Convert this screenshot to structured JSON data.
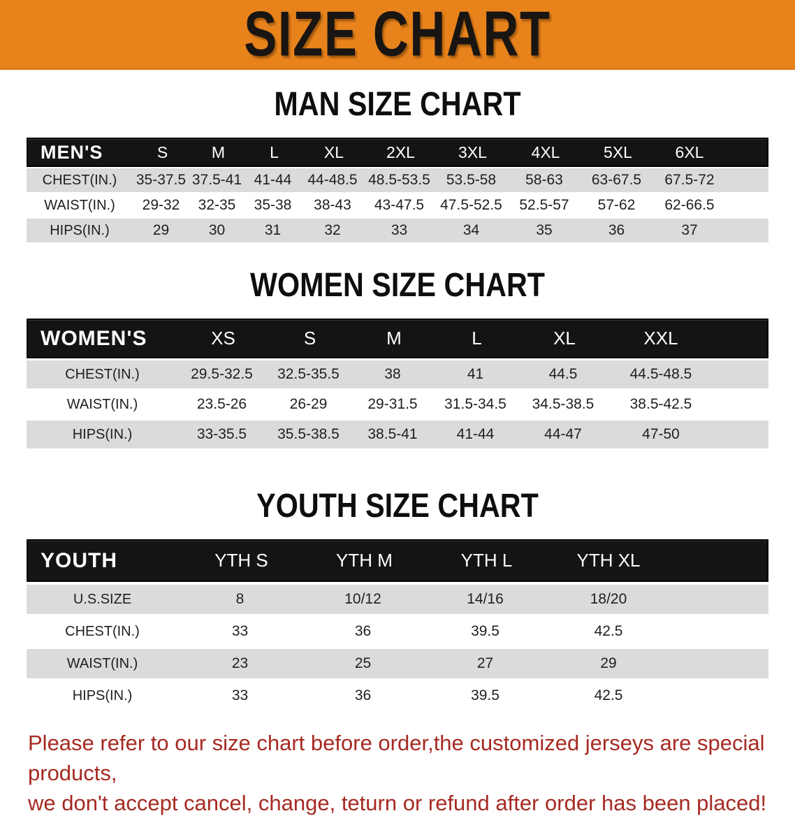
{
  "banner": {
    "title": "SIZE CHART",
    "bg_color": "#E8831C",
    "text_color": "#181512"
  },
  "men": {
    "section_title": "MAN SIZE CHART",
    "header_label": "MEN'S",
    "sizes": [
      "S",
      "M",
      "L",
      "XL",
      "2XL",
      "3XL",
      "4XL",
      "5XL",
      "6XL"
    ],
    "rows": [
      {
        "label": "CHEST(IN.)",
        "values": [
          "35-37.5",
          "37.5-41",
          "41-44",
          "44-48.5",
          "48.5-53.5",
          "53.5-58",
          "58-63",
          "63-67.5",
          "67.5-72"
        ]
      },
      {
        "label": "WAIST(IN.)",
        "values": [
          "29-32",
          "32-35",
          "35-38",
          "38-43",
          "43-47.5",
          "47.5-52.5",
          "52.5-57",
          "57-62",
          "62-66.5"
        ]
      },
      {
        "label": "HIPS(IN.)",
        "values": [
          "29",
          "30",
          "31",
          "32",
          "33",
          "34",
          "35",
          "36",
          "37"
        ]
      }
    ]
  },
  "women": {
    "section_title": "WOMEN SIZE CHART",
    "header_label": "WOMEN'S",
    "sizes": [
      "XS",
      "S",
      "M",
      "L",
      "XL",
      "XXL"
    ],
    "rows": [
      {
        "label": "CHEST(IN.)",
        "values": [
          "29.5-32.5",
          "32.5-35.5",
          "38",
          "41",
          "44.5",
          "44.5-48.5"
        ]
      },
      {
        "label": "WAIST(IN.)",
        "values": [
          "23.5-26",
          "26-29",
          "29-31.5",
          "31.5-34.5",
          "34.5-38.5",
          "38.5-42.5"
        ]
      },
      {
        "label": "HIPS(IN.)",
        "values": [
          "33-35.5",
          "35.5-38.5",
          "38.5-41",
          "41-44",
          "44-47",
          "47-50"
        ]
      }
    ]
  },
  "youth": {
    "section_title": "YOUTH SIZE CHART",
    "header_label": "YOUTH",
    "sizes": [
      "YTH S",
      "YTH M",
      "YTH L",
      "YTH XL"
    ],
    "rows": [
      {
        "label": "U.S.SIZE",
        "values": [
          "8",
          "10/12",
          "14/16",
          "18/20"
        ]
      },
      {
        "label": "CHEST(IN.)",
        "values": [
          "33",
          "36",
          "39.5",
          "42.5"
        ]
      },
      {
        "label": "WAIST(IN.)",
        "values": [
          "23",
          "25",
          "27",
          "29"
        ]
      },
      {
        "label": "HIPS(IN.)",
        "values": [
          "33",
          "36",
          "39.5",
          "42.5"
        ]
      }
    ]
  },
  "footnote": {
    "line1": "Please refer to our size chart before order,the customized jerseys are special products,",
    "line2": "we don't accept cancel, change, teturn or refund after order has been placed!",
    "color": "#A62A22"
  },
  "table_colors": {
    "header_band": "#141414",
    "stripe_gray": "#DBDBDB",
    "stripe_white": "#FFFFFF"
  }
}
